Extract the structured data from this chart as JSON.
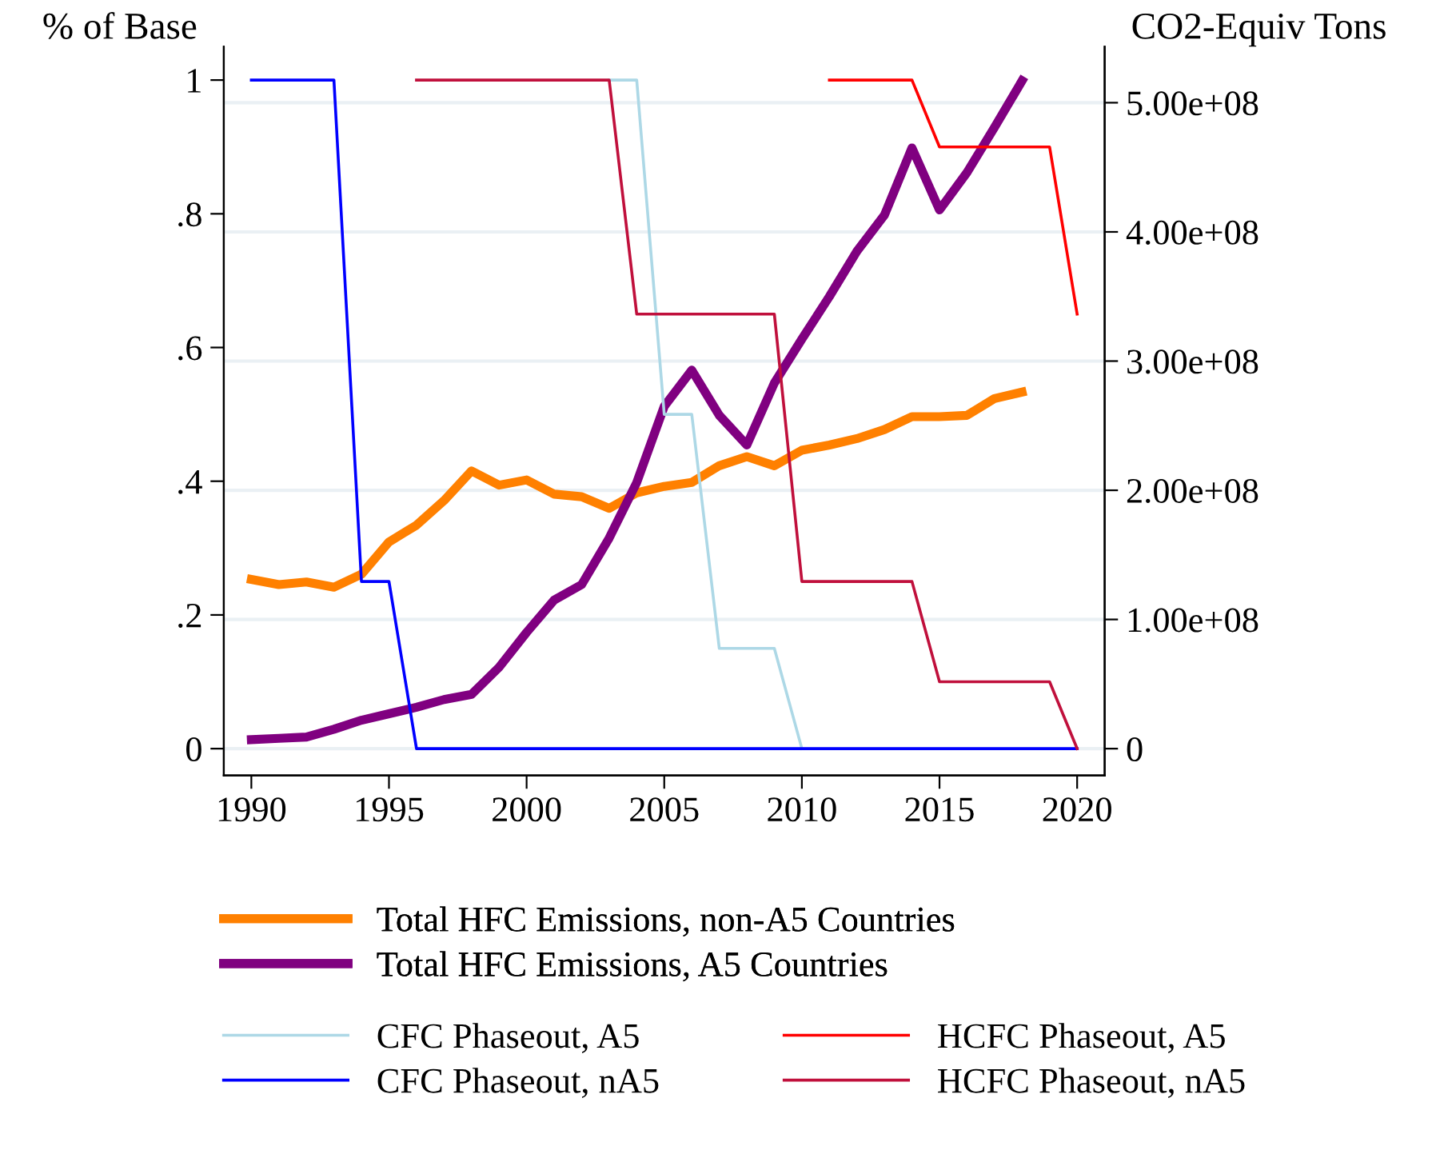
{
  "chart_data": {
    "type": "line",
    "ylabel": "% of Base",
    "y2label": "CO2-Equiv Tons",
    "xlim": [
      1989,
      2021
    ],
    "xticks": [
      1990,
      1995,
      2000,
      2005,
      2010,
      2015,
      2020
    ],
    "ylim": [
      -0.04,
      1.05
    ],
    "yticks": [
      {
        "value": 0,
        "label": "0"
      },
      {
        "value": 0.2,
        "label": ".2"
      },
      {
        "value": 0.4,
        "label": ".4"
      },
      {
        "value": 0.6,
        "label": ".6"
      },
      {
        "value": 0.8,
        "label": ".8"
      },
      {
        "value": 1,
        "label": "1"
      }
    ],
    "y2lim": [
      -20700000,
      543400000
    ],
    "y2ticks": [
      {
        "value": 0,
        "label": "0"
      },
      {
        "value": 100000000,
        "label": "1.00e+08"
      },
      {
        "value": 200000000,
        "label": "2.00e+08"
      },
      {
        "value": 300000000,
        "label": "3.00e+08"
      },
      {
        "value": 400000000,
        "label": "4.00e+08"
      },
      {
        "value": 500000000,
        "label": "5.00e+08"
      }
    ],
    "grid": "y",
    "legend": "bottom",
    "marker": "none",
    "line_style": "solid",
    "series": [
      {
        "name": "Total HFC Emissions, non-A5 Countries",
        "color": "#ff8000",
        "axis": "y2",
        "x": [
          1990,
          1991,
          1992,
          1993,
          1994,
          1995,
          1996,
          1997,
          1998,
          1999,
          2000,
          2001,
          2002,
          2003,
          2004,
          2005,
          2006,
          2007,
          2008,
          2009,
          2010,
          2011,
          2012,
          2013,
          2014,
          2015,
          2016,
          2017,
          2018
        ],
        "values": [
          131000000,
          127000000,
          129000000,
          125000000,
          135000000,
          160000000,
          173000000,
          192000000,
          215000000,
          204000000,
          208000000,
          197000000,
          195000000,
          186000000,
          198000000,
          203000000,
          206000000,
          219000000,
          226000000,
          219000000,
          231000000,
          235000000,
          240000000,
          247000000,
          257000000,
          257000000,
          258000000,
          271000000,
          276000000
        ]
      },
      {
        "name": "Total HFC Emissions, A5 Countries",
        "color": "#800080",
        "axis": "y2",
        "x": [
          1990,
          1991,
          1992,
          1993,
          1994,
          1995,
          1996,
          1997,
          1998,
          1999,
          2000,
          2001,
          2002,
          2003,
          2004,
          2005,
          2006,
          2007,
          2008,
          2009,
          2010,
          2011,
          2012,
          2013,
          2014,
          2015,
          2016,
          2017,
          2018
        ],
        "values": [
          7000000,
          8000000,
          9000000,
          15000000,
          22000000,
          27000000,
          32000000,
          38000000,
          42000000,
          63000000,
          90000000,
          115000000,
          127000000,
          163000000,
          206000000,
          265000000,
          293000000,
          258000000,
          235000000,
          283000000,
          317000000,
          350000000,
          385000000,
          413000000,
          465000000,
          417000000,
          446000000,
          481000000,
          517000000
        ]
      },
      {
        "name": "CFC Phaseout, A5",
        "color": "#add8e6",
        "x": [
          2003,
          2004,
          2005,
          2006,
          2007,
          2008,
          2009,
          2010
        ],
        "values": [
          1,
          1,
          0.5,
          0.5,
          0.15,
          0.15,
          0.15,
          0
        ]
      },
      {
        "name": "CFC Phaseout, nA5",
        "color": "#0000ff",
        "x": [
          1990,
          1991,
          1992,
          1993,
          1994,
          1995,
          1996,
          1997,
          1998,
          1999,
          2000,
          2001,
          2002,
          2003,
          2004,
          2005,
          2006,
          2007,
          2008,
          2009,
          2010,
          2011,
          2012,
          2013,
          2014,
          2015,
          2016,
          2017,
          2018,
          2019,
          2020
        ],
        "values": [
          1,
          1,
          1,
          1,
          0.25,
          0.25,
          0,
          0,
          0,
          0,
          0,
          0,
          0,
          0,
          0,
          0,
          0,
          0,
          0,
          0,
          0,
          0,
          0,
          0,
          0,
          0,
          0,
          0,
          0,
          0,
          0
        ]
      },
      {
        "name": "HCFC Phaseout, A5",
        "color": "#ff0000",
        "x": [
          2011,
          2012,
          2013,
          2014,
          2015,
          2016,
          2017,
          2018,
          2019,
          2020
        ],
        "values": [
          1,
          1,
          1,
          1,
          0.9,
          0.9,
          0.9,
          0.9,
          0.9,
          0.65
        ]
      },
      {
        "name": "HCFC Phaseout, nA5",
        "color": "#c0103c",
        "x": [
          1996,
          1997,
          1998,
          1999,
          2000,
          2001,
          2002,
          2003,
          2004,
          2005,
          2006,
          2007,
          2008,
          2009,
          2010,
          2011,
          2012,
          2013,
          2014,
          2015,
          2016,
          2017,
          2018,
          2019,
          2020
        ],
        "values": [
          1,
          1,
          1,
          1,
          1,
          1,
          1,
          1,
          0.65,
          0.65,
          0.65,
          0.65,
          0.65,
          0.65,
          0.25,
          0.25,
          0.25,
          0.25,
          0.25,
          0.1,
          0.1,
          0.1,
          0.1,
          0.1,
          0
        ]
      }
    ]
  }
}
